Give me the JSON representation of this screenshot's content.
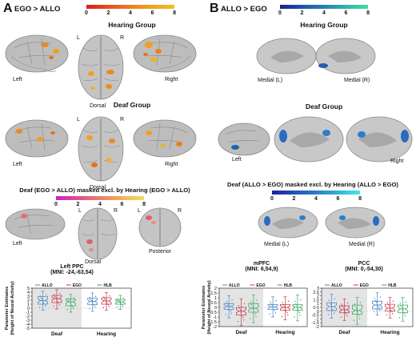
{
  "panelA": {
    "letter": "A",
    "title": "EGO > ALLO",
    "colorbar": {
      "ticks": [
        "0",
        "2",
        "4",
        "6",
        "8"
      ],
      "low": "#d62020",
      "high": "#f0c020"
    },
    "hearing_title": "Hearing Group",
    "deaf_title": "Deaf Group",
    "masked_title": "Deaf (EGO > ALLO) masked excl. by Hearing (EGO > ALLO)",
    "masked_colorbar": {
      "ticks": [
        "0",
        "2",
        "4",
        "6",
        "8"
      ],
      "low": "#d020d0",
      "high": "#f0e060"
    },
    "labels": {
      "left": "Left",
      "right": "Right",
      "dorsal": "Dorsal",
      "L": "L",
      "R": "R",
      "posterior": "Posterior"
    }
  },
  "panelB": {
    "letter": "B",
    "title": "ALLO > EGO",
    "colorbar": {
      "ticks": [
        "0",
        "2",
        "4",
        "6",
        "8"
      ],
      "low": "#202090",
      "high": "#40e0a0"
    },
    "hearing_title": "Hearing Group",
    "deaf_title": "Deaf Group",
    "masked_title": "Deaf (ALLO > EGO) masked excl. by Hearing (ALLO > EGO)",
    "masked_colorbar": {
      "ticks": [
        "0",
        "2",
        "4",
        "6",
        "8"
      ],
      "low": "#2020a0",
      "high": "#40e8e8"
    },
    "labels": {
      "medial_l": "Medial (L)",
      "medial_r": "Medial (R)",
      "left": "Left",
      "right": "Right"
    }
  },
  "plots": {
    "ylabel1": "Parameter Estimates",
    "ylabel2": "(Height of Neural Activity)",
    "legend": [
      "ALLO",
      "EGO",
      "HLB"
    ],
    "groups": [
      "Deaf",
      "Hearing"
    ],
    "colors": {
      "ALLO": "#4a86c8",
      "EGO": "#c83a4a",
      "HLB": "#3aa860"
    },
    "chart_data": [
      {
        "type": "box",
        "title": "Left PPC",
        "subtitle": "(MNI: -24,-63,54)",
        "ylim": [
          -5,
          5
        ],
        "yticks": [
          "-5",
          "-4",
          "-3",
          "-2",
          "-1",
          "0",
          "1",
          "2",
          "3",
          "4",
          "5"
        ],
        "categories": [
          "Deaf",
          "Hearing"
        ],
        "series": [
          {
            "name": "ALLO",
            "median": [
              1.9,
              1.7
            ],
            "q1": [
              1.0,
              0.9
            ],
            "q3": [
              2.9,
              2.5
            ],
            "min": [
              -0.5,
              -0.8
            ],
            "max": [
              4.2,
              3.8
            ]
          },
          {
            "name": "EGO",
            "median": [
              2.4,
              1.8
            ],
            "q1": [
              1.4,
              1.0
            ],
            "q3": [
              3.2,
              2.6
            ],
            "min": [
              -0.2,
              -0.5
            ],
            "max": [
              4.6,
              3.9
            ]
          },
          {
            "name": "HLB",
            "median": [
              1.6,
              1.6
            ],
            "q1": [
              0.6,
              1.0
            ],
            "q3": [
              2.3,
              2.2
            ],
            "min": [
              -1.0,
              -0.3
            ],
            "max": [
              3.5,
              3.2
            ]
          }
        ]
      },
      {
        "type": "box",
        "title": "mPFC",
        "subtitle": "(MNI: 6,54,9)",
        "ylim": [
          -2,
          2
        ],
        "yticks": [
          "-2",
          "-1.5",
          "-1",
          "-0.5",
          "0",
          "0.5",
          "1",
          "1.5",
          "2"
        ],
        "categories": [
          "Deaf",
          "Hearing"
        ],
        "series": [
          {
            "name": "ALLO",
            "median": [
              0.1,
              0.05
            ],
            "q1": [
              -0.2,
              -0.2
            ],
            "q3": [
              0.4,
              0.3
            ],
            "min": [
              -1.1,
              -1.0
            ],
            "max": [
              1.2,
              1.1
            ]
          },
          {
            "name": "EGO",
            "median": [
              -0.4,
              0.0
            ],
            "q1": [
              -0.8,
              -0.3
            ],
            "q3": [
              0.0,
              0.3
            ],
            "min": [
              -1.9,
              -1.3
            ],
            "max": [
              0.9,
              1.1
            ]
          },
          {
            "name": "HLB",
            "median": [
              -0.1,
              0.0
            ],
            "q1": [
              -0.5,
              -0.3
            ],
            "q3": [
              0.4,
              0.3
            ],
            "min": [
              -1.6,
              -1.4
            ],
            "max": [
              1.3,
              1.3
            ]
          }
        ]
      },
      {
        "type": "box",
        "title": "PCC",
        "subtitle": "(MNI: 0,-54,30)",
        "ylim": [
          -2,
          3
        ],
        "yticks": [
          "-2",
          "-1.5",
          "-1",
          "-0.5",
          "0",
          "0.5",
          "1",
          "1.5",
          "2",
          "2.5",
          "3"
        ],
        "categories": [
          "Deaf",
          "Hearing"
        ],
        "series": [
          {
            "name": "ALLO",
            "median": [
              0.6,
              0.8
            ],
            "q1": [
              0.1,
              0.3
            ],
            "q3": [
              1.1,
              1.3
            ],
            "min": [
              -0.9,
              -0.5
            ],
            "max": [
              2.2,
              2.4
            ]
          },
          {
            "name": "EGO",
            "median": [
              0.2,
              0.4
            ],
            "q1": [
              -0.2,
              0.0
            ],
            "q3": [
              0.7,
              0.9
            ],
            "min": [
              -1.2,
              -0.9
            ],
            "max": [
              1.6,
              1.8
            ]
          },
          {
            "name": "HLB",
            "median": [
              0.1,
              0.3
            ],
            "q1": [
              -0.4,
              -0.2
            ],
            "q3": [
              0.8,
              0.8
            ],
            "min": [
              -1.7,
              -1.3
            ],
            "max": [
              1.8,
              1.8
            ]
          }
        ]
      }
    ]
  }
}
